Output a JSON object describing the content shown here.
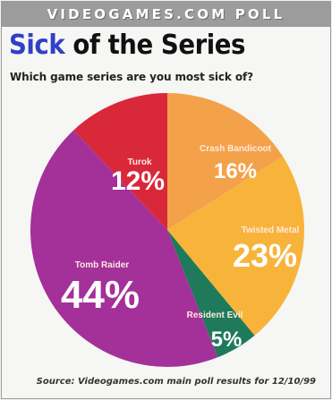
{
  "header": {
    "banner": "VIDEOGAMES.COM POLL"
  },
  "title": {
    "part1": "Sick",
    "part2": "of the Series"
  },
  "question": "Which game series are you most sick of?",
  "source": "Source: Videogames.com main poll results for 12/10/99",
  "chart_data": {
    "type": "pie",
    "title": "Sick of the Series",
    "subtitle": "Which game series are you most sick of?",
    "slices": [
      {
        "name": "Crash Bandicoot",
        "value": 16,
        "label": "16%",
        "color": "#f4a24a"
      },
      {
        "name": "Twisted Metal",
        "value": 23,
        "label": "23%",
        "color": "#f8b43a"
      },
      {
        "name": "Resident Evil",
        "value": 5,
        "label": "5%",
        "color": "#1e7a5a"
      },
      {
        "name": "Tomb Raider",
        "value": 44,
        "label": "44%",
        "color": "#a4309a"
      },
      {
        "name": "Turok",
        "value": 12,
        "label": "12%",
        "color": "#d8283a"
      }
    ]
  }
}
